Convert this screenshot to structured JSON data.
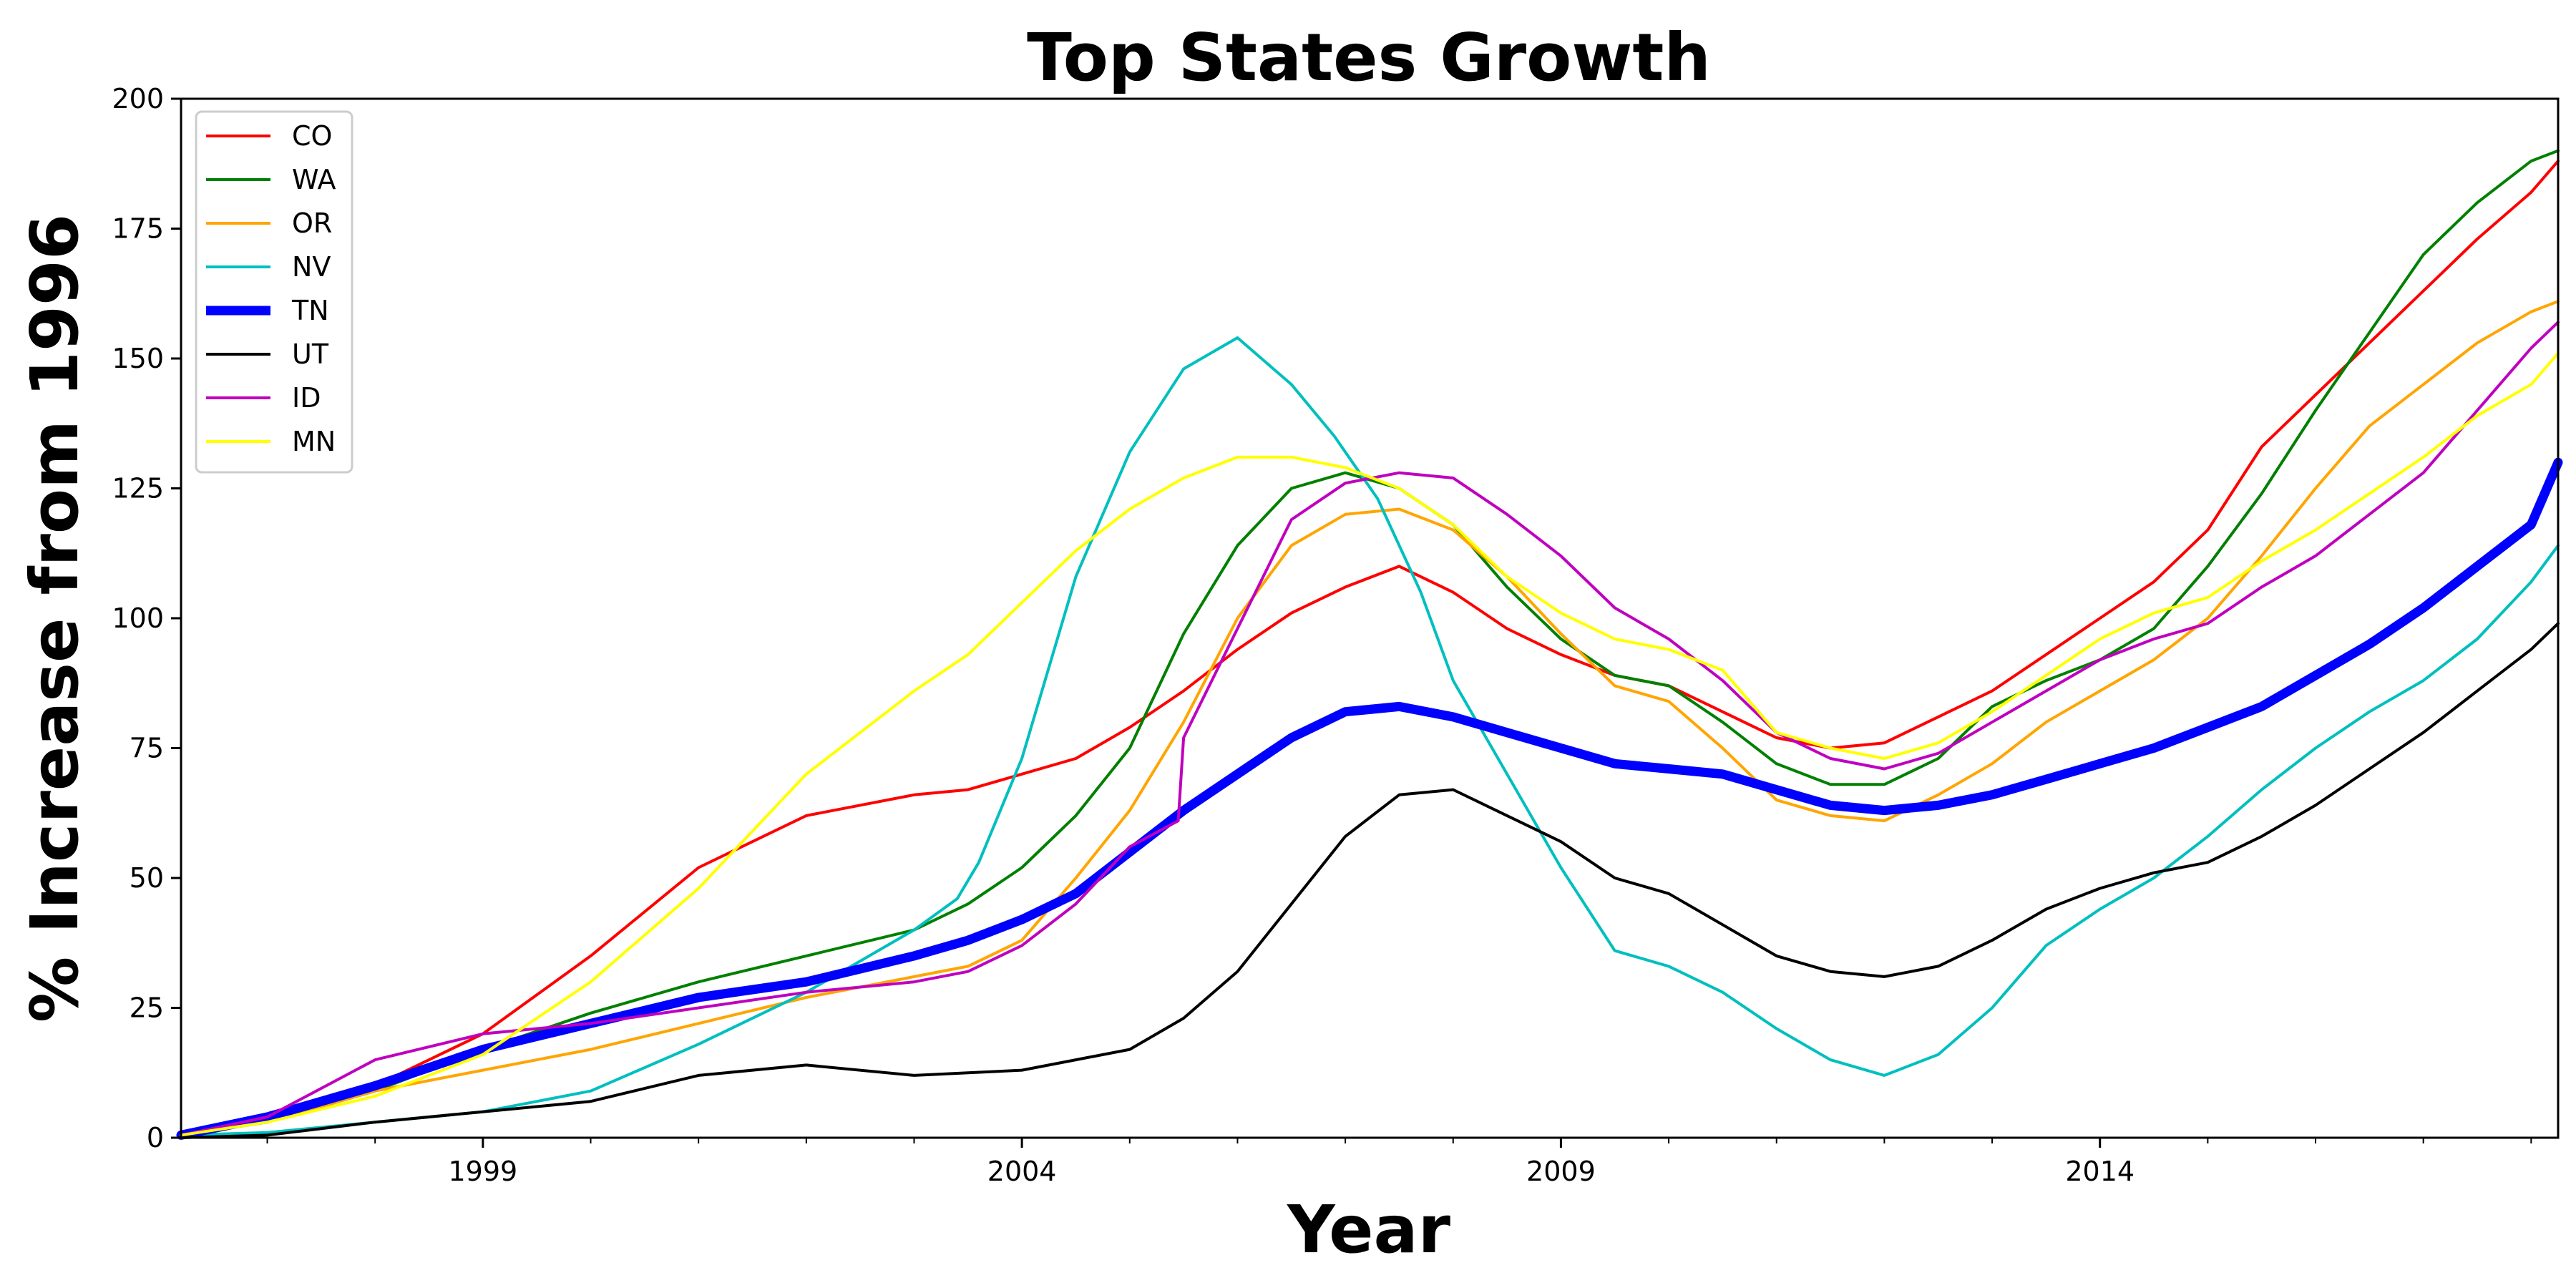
{
  "chart_data": {
    "type": "line",
    "title": "Top States Growth",
    "xlabel": "Year",
    "ylabel": "% Increase from 1996",
    "xlim": [
      1996.2,
      2018.25
    ],
    "ylim": [
      0,
      200
    ],
    "yticks": [
      0,
      25,
      50,
      75,
      100,
      125,
      150,
      175,
      200
    ],
    "xticks": [
      1999,
      2004,
      2009,
      2014
    ],
    "grid": false,
    "legend_position": "upper-left",
    "series": [
      {
        "name": "CO",
        "color": "#ff0000",
        "width": 4,
        "x": [
          1996.2,
          1997,
          1998,
          1999,
          2000,
          2001,
          2002,
          2003,
          2003.5,
          2004,
          2004.5,
          2005,
          2005.5,
          2006,
          2006.5,
          2007,
          2007.5,
          2008,
          2008.5,
          2009,
          2009.5,
          2010,
          2010.5,
          2011,
          2011.5,
          2012,
          2012.5,
          2013,
          2013.5,
          2014,
          2014.5,
          2015,
          2015.5,
          2016,
          2016.5,
          2017,
          2017.5,
          2018,
          2018.25
        ],
        "values": [
          0.5,
          3,
          10,
          20,
          35,
          52,
          62,
          66,
          67,
          70,
          73,
          79,
          86,
          94,
          101,
          106,
          110,
          105,
          98,
          93,
          89,
          87,
          82,
          77,
          75,
          76,
          81,
          86,
          93,
          100,
          107,
          117,
          133,
          143,
          153,
          163,
          173,
          182,
          188
        ]
      },
      {
        "name": "WA",
        "color": "#008000",
        "width": 4,
        "x": [
          1996.2,
          1997,
          1998,
          1999,
          2000,
          2001,
          2002,
          2003,
          2003.5,
          2004,
          2004.5,
          2005,
          2005.5,
          2006,
          2006.5,
          2007,
          2007.5,
          2008,
          2008.5,
          2009,
          2009.5,
          2010,
          2010.5,
          2011,
          2011.5,
          2012,
          2012.5,
          2013,
          2013.5,
          2014,
          2014.5,
          2015,
          2015.5,
          2016,
          2016.5,
          2017,
          2017.5,
          2018,
          2018.25
        ],
        "values": [
          0.5,
          3,
          9,
          17,
          24,
          30,
          35,
          40,
          45,
          52,
          62,
          75,
          97,
          114,
          125,
          128,
          125,
          118,
          106,
          96,
          89,
          87,
          80,
          72,
          68,
          68,
          73,
          83,
          88,
          92,
          98,
          110,
          124,
          140,
          155,
          170,
          180,
          188,
          190
        ]
      },
      {
        "name": "OR",
        "color": "#ffa500",
        "width": 4,
        "x": [
          1996.2,
          1997,
          1998,
          1999,
          2000,
          2001,
          2002,
          2003,
          2003.5,
          2004,
          2004.5,
          2005,
          2005.5,
          2006,
          2006.5,
          2007,
          2007.5,
          2008,
          2008.5,
          2009,
          2009.5,
          2010,
          2010.5,
          2011,
          2011.5,
          2012,
          2012.5,
          2013,
          2013.5,
          2014,
          2014.5,
          2015,
          2015.5,
          2016,
          2016.5,
          2017,
          2017.5,
          2018,
          2018.25
        ],
        "values": [
          0.5,
          3,
          9,
          13,
          17,
          22,
          27,
          31,
          33,
          38,
          50,
          63,
          80,
          100,
          114,
          120,
          121,
          117,
          108,
          97,
          87,
          84,
          75,
          65,
          62,
          61,
          66,
          72,
          80,
          86,
          92,
          100,
          112,
          125,
          137,
          145,
          153,
          159,
          161
        ]
      },
      {
        "name": "NV",
        "color": "#00bfbf",
        "width": 4,
        "x": [
          1996.2,
          1997,
          1998,
          1999,
          2000,
          2001,
          2002,
          2003,
          2003.4,
          2003.6,
          2004,
          2004.5,
          2005,
          2005.5,
          2006,
          2006.5,
          2006.9,
          2007.3,
          2007.7,
          2008,
          2008.5,
          2009,
          2009.5,
          2010,
          2010.5,
          2011,
          2011.5,
          2012,
          2012.5,
          2013,
          2013.5,
          2014,
          2014.5,
          2015,
          2015.5,
          2016,
          2016.5,
          2017,
          2017.5,
          2018,
          2018.25
        ],
        "values": [
          0.5,
          1,
          3,
          5,
          9,
          18,
          28,
          40,
          46,
          53,
          73,
          108,
          132,
          148,
          154,
          145,
          135,
          123,
          105,
          88,
          70,
          52,
          36,
          33,
          28,
          21,
          15,
          12,
          16,
          25,
          37,
          44,
          50,
          58,
          67,
          75,
          82,
          88,
          96,
          107,
          114
        ]
      },
      {
        "name": "TN",
        "color": "#0000ff",
        "width": 13,
        "x": [
          1996.2,
          1997,
          1998,
          1999,
          2000,
          2001,
          2002,
          2003,
          2003.5,
          2004,
          2004.5,
          2005,
          2005.5,
          2006,
          2006.5,
          2007,
          2007.5,
          2008,
          2008.5,
          2009,
          2009.5,
          2010,
          2010.5,
          2011,
          2011.5,
          2012,
          2012.5,
          2013,
          2013.5,
          2014,
          2014.5,
          2015,
          2015.5,
          2016,
          2016.5,
          2017,
          2017.5,
          2018,
          2018.25
        ],
        "values": [
          0.5,
          4,
          10,
          17,
          22,
          27,
          30,
          35,
          38,
          42,
          47,
          55,
          63,
          70,
          77,
          82,
          83,
          81,
          78,
          75,
          72,
          71,
          70,
          67,
          64,
          63,
          64,
          66,
          69,
          72,
          75,
          79,
          83,
          89,
          95,
          102,
          110,
          118,
          130
        ]
      },
      {
        "name": "UT",
        "color": "#000000",
        "width": 4,
        "x": [
          1996.2,
          1997,
          1998,
          1999,
          2000,
          2001,
          2002,
          2003,
          2003.5,
          2004,
          2004.5,
          2005,
          2005.5,
          2006,
          2006.5,
          2007,
          2007.5,
          2008,
          2008.5,
          2009,
          2009.5,
          2010,
          2010.5,
          2011,
          2011.5,
          2012,
          2012.5,
          2013,
          2013.5,
          2014,
          2014.5,
          2015,
          2015.5,
          2016,
          2016.5,
          2017,
          2017.5,
          2018,
          2018.25
        ],
        "values": [
          0,
          0.5,
          3,
          5,
          7,
          12,
          14,
          12,
          12.5,
          13,
          15,
          17,
          23,
          32,
          45,
          58,
          66,
          67,
          62,
          57,
          50,
          47,
          41,
          35,
          32,
          31,
          33,
          38,
          44,
          48,
          51,
          53,
          58,
          64,
          71,
          78,
          86,
          94,
          99
        ]
      },
      {
        "name": "ID",
        "color": "#bf00bf",
        "width": 4,
        "x": [
          1996.2,
          1997,
          1998,
          1999,
          2000,
          2001,
          2002,
          2003,
          2003.5,
          2004,
          2004.5,
          2005,
          2005.45,
          2005.5,
          2006,
          2006.5,
          2007,
          2007.5,
          2008,
          2008.5,
          2009,
          2009.5,
          2010,
          2010.5,
          2011,
          2011.5,
          2012,
          2012.5,
          2013,
          2013.5,
          2014,
          2014.5,
          2015,
          2015.5,
          2016,
          2016.5,
          2017,
          2017.5,
          2018,
          2018.25
        ],
        "values": [
          0.5,
          4,
          15,
          20,
          22,
          25,
          28,
          30,
          32,
          37,
          45,
          56,
          61,
          77,
          98,
          119,
          126,
          128,
          127,
          120,
          112,
          102,
          96,
          88,
          78,
          73,
          71,
          74,
          80,
          86,
          92,
          96,
          99,
          106,
          112,
          120,
          128,
          140,
          152,
          157
        ]
      },
      {
        "name": "MN",
        "color": "#ffff00",
        "width": 4,
        "x": [
          1996.2,
          1997,
          1998,
          1999,
          2000,
          2001,
          2002,
          2003,
          2003.5,
          2004,
          2004.5,
          2005,
          2005.5,
          2006,
          2006.5,
          2007,
          2007.5,
          2008,
          2008.5,
          2009,
          2009.5,
          2010,
          2010.5,
          2011,
          2011.5,
          2012,
          2012.5,
          2013,
          2013.5,
          2014,
          2014.5,
          2015,
          2015.5,
          2016,
          2016.5,
          2017,
          2017.5,
          2018,
          2018.25
        ],
        "values": [
          0.5,
          3,
          8,
          16,
          30,
          48,
          70,
          86,
          93,
          103,
          113,
          121,
          127,
          131,
          131,
          129,
          125,
          118,
          108,
          101,
          96,
          94,
          90,
          78,
          75,
          73,
          76,
          82,
          89,
          96,
          101,
          104,
          111,
          117,
          124,
          131,
          139,
          145,
          151
        ]
      }
    ]
  }
}
